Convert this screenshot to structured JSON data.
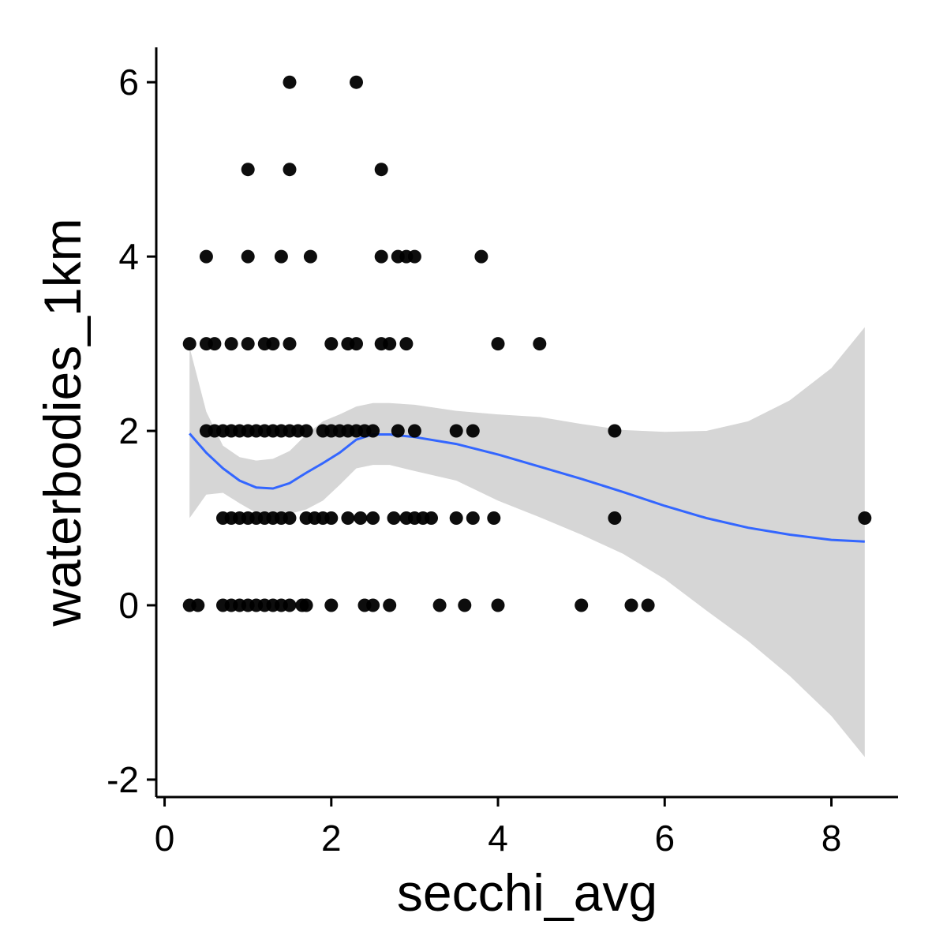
{
  "chart_data": {
    "type": "scatter",
    "title": "",
    "xlabel": "secchi_avg",
    "ylabel": "waterbodies_1km",
    "xlim": [
      -0.1,
      8.8
    ],
    "ylim": [
      -2.2,
      6.4
    ],
    "x_ticks": [
      0,
      2,
      4,
      6,
      8
    ],
    "y_ticks": [
      -2,
      0,
      2,
      4,
      6
    ],
    "x_tick_labels": [
      "0",
      "2",
      "4",
      "6",
      "8"
    ],
    "y_tick_labels": [
      "-2",
      "0",
      "2",
      "4",
      "6"
    ],
    "grid": false,
    "legend": "none",
    "colors": {
      "points": "#000000",
      "smooth_line": "#3366ff",
      "confidence_band": "#d6d6d6"
    },
    "points": [
      [
        1.5,
        6
      ],
      [
        2.3,
        6
      ],
      [
        1.0,
        5
      ],
      [
        1.5,
        5
      ],
      [
        2.6,
        5
      ],
      [
        0.5,
        4
      ],
      [
        1.0,
        4
      ],
      [
        1.4,
        4
      ],
      [
        1.75,
        4
      ],
      [
        2.6,
        4
      ],
      [
        2.8,
        4
      ],
      [
        2.9,
        4
      ],
      [
        3.0,
        4
      ],
      [
        3.8,
        4
      ],
      [
        0.3,
        3
      ],
      [
        0.5,
        3
      ],
      [
        0.6,
        3
      ],
      [
        0.8,
        3
      ],
      [
        1.0,
        3
      ],
      [
        1.2,
        3
      ],
      [
        1.3,
        3
      ],
      [
        1.5,
        3
      ],
      [
        2.0,
        3
      ],
      [
        2.2,
        3
      ],
      [
        2.3,
        3
      ],
      [
        2.6,
        3
      ],
      [
        2.7,
        3
      ],
      [
        2.9,
        3
      ],
      [
        4.0,
        3
      ],
      [
        4.5,
        3
      ],
      [
        0.5,
        2
      ],
      [
        0.6,
        2
      ],
      [
        0.7,
        2
      ],
      [
        0.8,
        2
      ],
      [
        0.9,
        2
      ],
      [
        1.0,
        2
      ],
      [
        1.1,
        2
      ],
      [
        1.2,
        2
      ],
      [
        1.3,
        2
      ],
      [
        1.4,
        2
      ],
      [
        1.5,
        2
      ],
      [
        1.6,
        2
      ],
      [
        1.7,
        2
      ],
      [
        1.9,
        2
      ],
      [
        2.0,
        2
      ],
      [
        2.1,
        2
      ],
      [
        2.2,
        2
      ],
      [
        2.3,
        2
      ],
      [
        2.4,
        2
      ],
      [
        2.5,
        2
      ],
      [
        2.8,
        2
      ],
      [
        3.0,
        2
      ],
      [
        3.5,
        2
      ],
      [
        3.7,
        2
      ],
      [
        5.4,
        2
      ],
      [
        0.7,
        1
      ],
      [
        0.8,
        1
      ],
      [
        0.9,
        1
      ],
      [
        1.0,
        1
      ],
      [
        1.1,
        1
      ],
      [
        1.2,
        1
      ],
      [
        1.3,
        1
      ],
      [
        1.4,
        1
      ],
      [
        1.5,
        1
      ],
      [
        1.7,
        1
      ],
      [
        1.8,
        1
      ],
      [
        1.9,
        1
      ],
      [
        2.0,
        1
      ],
      [
        2.2,
        1
      ],
      [
        2.35,
        1
      ],
      [
        2.5,
        1
      ],
      [
        2.75,
        1
      ],
      [
        2.9,
        1
      ],
      [
        3.0,
        1
      ],
      [
        3.1,
        1
      ],
      [
        3.2,
        1
      ],
      [
        3.5,
        1
      ],
      [
        3.7,
        1
      ],
      [
        3.95,
        1
      ],
      [
        5.4,
        1
      ],
      [
        8.4,
        1
      ],
      [
        0.3,
        0
      ],
      [
        0.4,
        0
      ],
      [
        0.7,
        0
      ],
      [
        0.8,
        0
      ],
      [
        0.9,
        0
      ],
      [
        1.0,
        0
      ],
      [
        1.1,
        0
      ],
      [
        1.2,
        0
      ],
      [
        1.3,
        0
      ],
      [
        1.4,
        0
      ],
      [
        1.5,
        0
      ],
      [
        1.65,
        0
      ],
      [
        1.7,
        0
      ],
      [
        2.0,
        0
      ],
      [
        2.4,
        0
      ],
      [
        2.5,
        0
      ],
      [
        2.7,
        0
      ],
      [
        3.3,
        0
      ],
      [
        3.6,
        0
      ],
      [
        4.0,
        0
      ],
      [
        5.0,
        0
      ],
      [
        5.6,
        0
      ],
      [
        5.8,
        0
      ]
    ],
    "smooth": {
      "x": [
        0.3,
        0.5,
        0.7,
        0.9,
        1.1,
        1.3,
        1.5,
        1.7,
        1.9,
        2.1,
        2.3,
        2.5,
        2.7,
        3.0,
        3.5,
        4.0,
        4.5,
        5.0,
        5.5,
        6.0,
        6.5,
        7.0,
        7.5,
        8.0,
        8.4
      ],
      "y": [
        1.97,
        1.75,
        1.57,
        1.43,
        1.35,
        1.34,
        1.4,
        1.52,
        1.63,
        1.75,
        1.9,
        1.96,
        1.96,
        1.93,
        1.85,
        1.73,
        1.59,
        1.45,
        1.3,
        1.14,
        1.0,
        0.89,
        0.81,
        0.75,
        0.73
      ],
      "upper": [
        2.96,
        2.22,
        1.83,
        1.7,
        1.66,
        1.68,
        1.77,
        1.96,
        2.11,
        2.19,
        2.28,
        2.32,
        2.32,
        2.3,
        2.23,
        2.19,
        2.16,
        2.08,
        2.01,
        1.99,
        2.0,
        2.11,
        2.35,
        2.72,
        3.19
      ],
      "lower": [
        1.0,
        1.27,
        1.29,
        1.17,
        1.06,
        1.01,
        1.05,
        1.1,
        1.2,
        1.38,
        1.57,
        1.61,
        1.61,
        1.54,
        1.43,
        1.2,
        1.01,
        0.81,
        0.59,
        0.3,
        -0.06,
        -0.41,
        -0.81,
        -1.27,
        -1.74
      ]
    }
  }
}
